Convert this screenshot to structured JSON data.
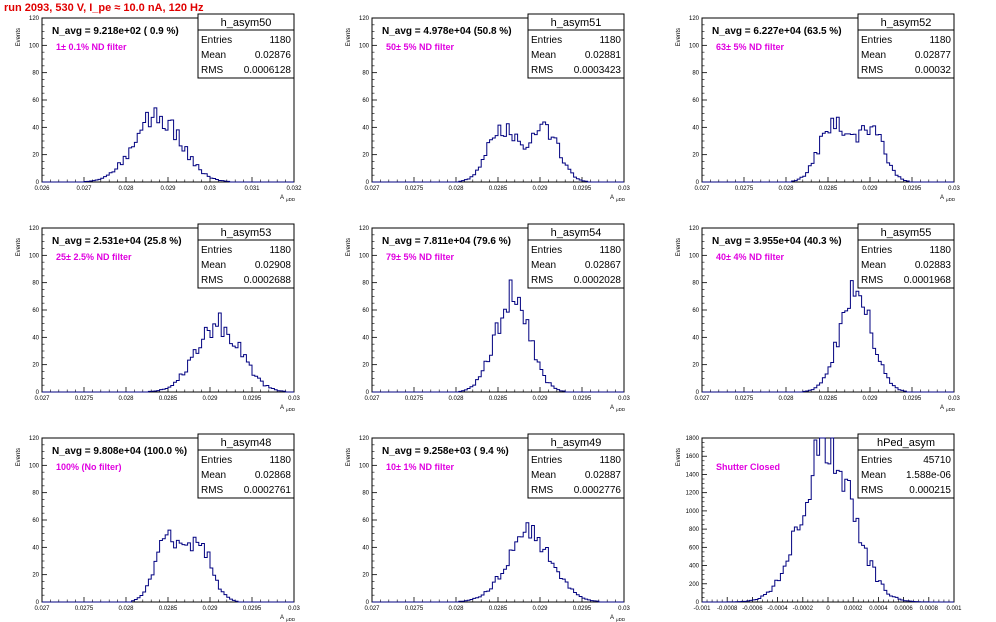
{
  "page_title": "run 2093,   530 V, I_pe ≈ 10.0 nA, 120 Hz",
  "colors": {
    "title": "#e00000",
    "histogram": "#000080",
    "annotation": "#e000e0",
    "frame": "#000000"
  },
  "chart_data": [
    {
      "type": "bar",
      "name": "h_asym50",
      "title": "N_avg = 9.218e+02 ( 0.9 %)",
      "annotation": "1± 0.1% ND filter",
      "xlabel": "A",
      "xlabel_sub": "μDD",
      "ylabel": "Events",
      "xlim": [
        0.026,
        0.032
      ],
      "ylim": [
        0,
        120
      ],
      "xticks": [
        "0.026",
        "0.027",
        "0.028",
        "0.029",
        "0.03",
        "0.031",
        "0.032"
      ],
      "yticks": [
        "0",
        "20",
        "40",
        "60",
        "80",
        "100",
        "120"
      ],
      "stats": {
        "Entries": "1180",
        "Mean": "0.02876",
        "RMS": "0.0006128"
      },
      "peaks": [
        {
          "x": 0.02875,
          "sigma": 0.00055,
          "amp": 48
        }
      ]
    },
    {
      "type": "bar",
      "name": "h_asym51",
      "title": "N_avg = 4.978e+04 (50.8 %)",
      "annotation": "50± 5% ND filter",
      "xlabel": "A",
      "xlabel_sub": "μDD",
      "ylabel": "Events",
      "xlim": [
        0.027,
        0.03
      ],
      "ylim": [
        0,
        120
      ],
      "xticks": [
        "0.027",
        "0.0275",
        "0.028",
        "0.0285",
        "0.029",
        "0.0295",
        "0.03"
      ],
      "yticks": [
        "0",
        "20",
        "40",
        "60",
        "80",
        "100",
        "120"
      ],
      "stats": {
        "Entries": "1180",
        "Mean": "0.02881",
        "RMS": "0.0003423"
      },
      "peaks": [
        {
          "x": 0.02855,
          "sigma": 0.00017,
          "amp": 40
        },
        {
          "x": 0.02905,
          "sigma": 0.00017,
          "amp": 40
        }
      ]
    },
    {
      "type": "bar",
      "name": "h_asym52",
      "title": "N_avg = 6.227e+04 (63.5 %)",
      "annotation": "63± 5% ND filter",
      "xlabel": "A",
      "xlabel_sub": "μDD",
      "ylabel": "Events",
      "xlim": [
        0.027,
        0.03
      ],
      "ylim": [
        0,
        120
      ],
      "xticks": [
        "0.027",
        "0.0275",
        "0.028",
        "0.0285",
        "0.029",
        "0.0295",
        "0.03"
      ],
      "yticks": [
        "0",
        "20",
        "40",
        "60",
        "80",
        "100",
        "120"
      ],
      "stats": {
        "Entries": "1180",
        "Mean": "0.02877",
        "RMS": "0.00032"
      },
      "peaks": [
        {
          "x": 0.02855,
          "sigma": 0.00016,
          "amp": 43
        },
        {
          "x": 0.029,
          "sigma": 0.00016,
          "amp": 40
        }
      ]
    },
    {
      "type": "bar",
      "name": "h_asym53",
      "title": "N_avg = 2.531e+04 (25.8 %)",
      "annotation": "25± 2.5% ND filter",
      "xlabel": "A",
      "xlabel_sub": "μDD",
      "ylabel": "Events",
      "xlim": [
        0.027,
        0.03
      ],
      "ylim": [
        0,
        120
      ],
      "xticks": [
        "0.027",
        "0.0275",
        "0.028",
        "0.0285",
        "0.029",
        "0.0295",
        "0.03"
      ],
      "yticks": [
        "0",
        "20",
        "40",
        "60",
        "80",
        "100",
        "120"
      ],
      "stats": {
        "Entries": "1180",
        "Mean": "0.02908",
        "RMS": "0.0002688"
      },
      "peaks": [
        {
          "x": 0.0291,
          "sigma": 0.00026,
          "amp": 50
        }
      ]
    },
    {
      "type": "bar",
      "name": "h_asym54",
      "title": "N_avg = 7.811e+04 (79.6 %)",
      "annotation": "79± 5% ND filter",
      "xlabel": "A",
      "xlabel_sub": "μDD",
      "ylabel": "Events",
      "xlim": [
        0.027,
        0.03
      ],
      "ylim": [
        0,
        120
      ],
      "xticks": [
        "0.027",
        "0.0275",
        "0.028",
        "0.0285",
        "0.029",
        "0.0295",
        "0.03"
      ],
      "yticks": [
        "0",
        "20",
        "40",
        "60",
        "80",
        "100",
        "120"
      ],
      "stats": {
        "Entries": "1180",
        "Mean": "0.02867",
        "RMS": "0.0002028"
      },
      "peaks": [
        {
          "x": 0.02867,
          "sigma": 0.0002,
          "amp": 70
        }
      ]
    },
    {
      "type": "bar",
      "name": "h_asym55",
      "title": "N_avg = 3.955e+04 (40.3 %)",
      "annotation": "40± 4% ND filter",
      "xlabel": "A",
      "xlabel_sub": "μDD",
      "ylabel": "Events",
      "xlim": [
        0.027,
        0.03
      ],
      "ylim": [
        0,
        120
      ],
      "xticks": [
        "0.027",
        "0.0275",
        "0.028",
        "0.0285",
        "0.029",
        "0.0295",
        "0.03"
      ],
      "yticks": [
        "0",
        "20",
        "40",
        "60",
        "80",
        "100",
        "120"
      ],
      "stats": {
        "Entries": "1180",
        "Mean": "0.02883",
        "RMS": "0.0001968"
      },
      "peaks": [
        {
          "x": 0.02883,
          "sigma": 0.00019,
          "amp": 74
        }
      ]
    },
    {
      "type": "bar",
      "name": "h_asym48",
      "title": "N_avg = 9.808e+04 (100.0 %)",
      "annotation": "100% (No filter)",
      "xlabel": "A",
      "xlabel_sub": "μDD",
      "ylabel": "Events",
      "xlim": [
        0.027,
        0.03
      ],
      "ylim": [
        0,
        120
      ],
      "xticks": [
        "0.027",
        "0.0275",
        "0.028",
        "0.0285",
        "0.029",
        "0.0295",
        "0.03"
      ],
      "yticks": [
        "0",
        "20",
        "40",
        "60",
        "80",
        "100",
        "120"
      ],
      "stats": {
        "Entries": "1180",
        "Mean": "0.02868",
        "RMS": "0.0002761"
      },
      "peaks": [
        {
          "x": 0.02848,
          "sigma": 0.00014,
          "amp": 45
        },
        {
          "x": 0.02885,
          "sigma": 0.00016,
          "amp": 44
        }
      ]
    },
    {
      "type": "bar",
      "name": "h_asym49",
      "title": "N_avg = 9.258e+03 ( 9.4 %)",
      "annotation": "10± 1% ND filter",
      "xlabel": "A",
      "xlabel_sub": "μDD",
      "ylabel": "Events",
      "xlim": [
        0.027,
        0.03
      ],
      "ylim": [
        0,
        120
      ],
      "xticks": [
        "0.027",
        "0.0275",
        "0.028",
        "0.0285",
        "0.029",
        "0.0295",
        "0.03"
      ],
      "yticks": [
        "0",
        "20",
        "40",
        "60",
        "80",
        "100",
        "120"
      ],
      "stats": {
        "Entries": "1180",
        "Mean": "0.02887",
        "RMS": "0.0002776"
      },
      "peaks": [
        {
          "x": 0.02888,
          "sigma": 0.00027,
          "amp": 50
        }
      ]
    },
    {
      "type": "bar",
      "name": "hPed_asym",
      "title": "",
      "annotation": "Shutter Closed",
      "xlabel": "",
      "xlabel_sub": "",
      "ylabel": "Events",
      "xlim": [
        -0.001,
        0.001
      ],
      "ylim": [
        0,
        1800
      ],
      "xticks": [
        "-0.001",
        "-0.0008",
        "-0.0006",
        "-0.0004",
        "-0.0002",
        "0",
        "0.0002",
        "0.0004",
        "0.0006",
        "0.0008",
        "0.001"
      ],
      "yticks": [
        "0",
        "200",
        "400",
        "600",
        "800",
        "1000",
        "1200",
        "1400",
        "1600",
        "1800"
      ],
      "stats": {
        "Entries": "45710",
        "Mean": "1.588e-06",
        "RMS": "0.000215"
      },
      "peaks": [
        {
          "x": 0.0,
          "sigma": 0.0002,
          "amp": 1780
        }
      ]
    }
  ]
}
